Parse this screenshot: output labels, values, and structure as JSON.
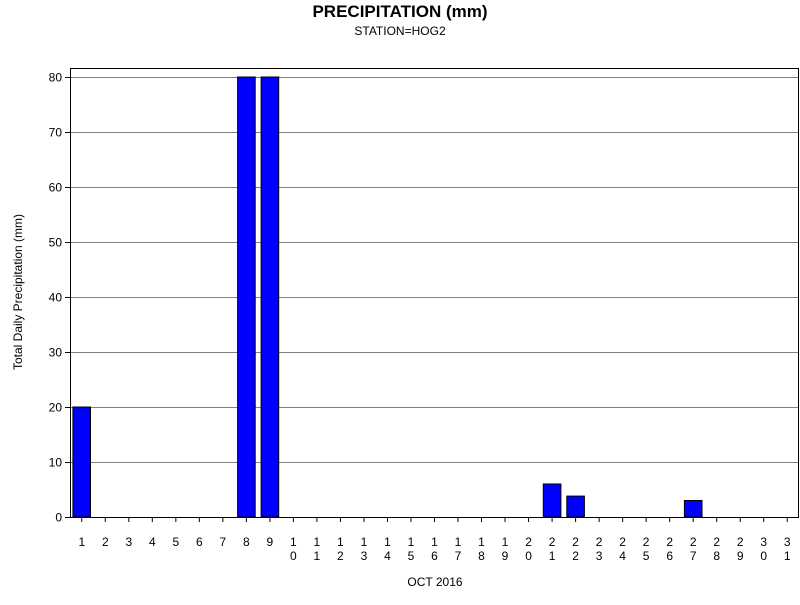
{
  "chart_data": {
    "type": "bar",
    "title": "PRECIPITATION (mm)",
    "subtitle": "STATION=HOG2",
    "xlabel": "OCT 2016",
    "ylabel": "Total Daily Precipitation (mm)",
    "categories": [
      "1",
      "2",
      "3",
      "4",
      "5",
      "6",
      "7",
      "8",
      "9",
      "10",
      "11",
      "12",
      "13",
      "14",
      "15",
      "16",
      "17",
      "18",
      "19",
      "20",
      "21",
      "22",
      "23",
      "24",
      "25",
      "26",
      "27",
      "28",
      "29",
      "30",
      "31"
    ],
    "values": [
      20,
      0,
      0,
      0,
      0,
      0,
      0,
      80,
      80,
      0,
      0,
      0,
      0,
      0,
      0,
      0,
      0,
      0,
      0,
      0,
      6,
      3.8,
      0,
      0,
      0,
      0,
      3,
      0,
      0,
      0,
      0
    ],
    "ylim": [
      0,
      80
    ],
    "yticks": [
      0,
      10,
      20,
      30,
      40,
      50,
      60,
      70,
      80
    ],
    "grid": true,
    "bar_color": "#0000ff",
    "grid_color": "#808080"
  }
}
